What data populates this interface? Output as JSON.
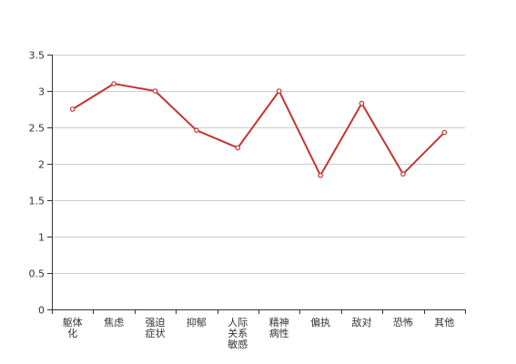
{
  "chart_data": {
    "type": "line",
    "title": "",
    "xlabel": "",
    "ylabel": "",
    "categories": [
      "躯体化",
      "焦虑",
      "强迫症状",
      "抑郁",
      "人际关系敏感",
      "精神病性",
      "偏执",
      "敌对",
      "恐怖",
      "其他"
    ],
    "series": [
      {
        "values": [
          2.75,
          3.1,
          3.0,
          2.46,
          2.22,
          3.0,
          1.84,
          2.83,
          1.86,
          2.43
        ]
      }
    ],
    "ylim": [
      0,
      3.5
    ],
    "yticks": [
      "0",
      "0.5",
      "1",
      "1.5",
      "2",
      "2.5",
      "3",
      "3.5"
    ],
    "grid": true,
    "colors": {
      "line": "#c23531",
      "grid": "#cccccc",
      "axis": "#333333"
    }
  }
}
